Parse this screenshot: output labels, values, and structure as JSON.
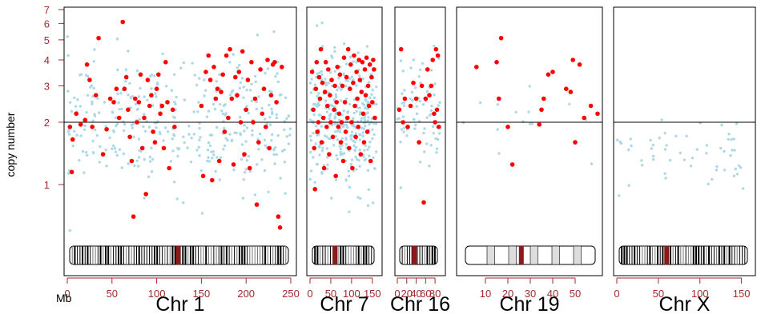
{
  "chart_data": {
    "type": "scatter",
    "ylabel": "copy number",
    "xunit": "Mb",
    "yscale": "log",
    "ylim": [
      0.5,
      7.4
    ],
    "yticks": [
      1,
      2,
      3,
      4,
      5,
      6,
      7
    ],
    "baseline": 2,
    "colors": {
      "tick": "#a52a2a",
      "light_points": "#add8e6",
      "highlight_points": "#ff0000",
      "frame": "#000000",
      "centromere": "#8b1a1a"
    },
    "panels": [
      {
        "name": "Chr 1",
        "xlim": [
          0,
          250
        ],
        "xticks": [
          0,
          50,
          100,
          150,
          200,
          250
        ],
        "centromere": 124,
        "highlight": [
          [
            3,
            1.9
          ],
          [
            5,
            1.15
          ],
          [
            6,
            1.65
          ],
          [
            10,
            2.2
          ],
          [
            15,
            1.95
          ],
          [
            20,
            2.05
          ],
          [
            22,
            3.8
          ],
          [
            25,
            3.2
          ],
          [
            28,
            1.9
          ],
          [
            32,
            2.7
          ],
          [
            35,
            5.1
          ],
          [
            40,
            1.4
          ],
          [
            44,
            1.85
          ],
          [
            48,
            2.6
          ],
          [
            52,
            2.5
          ],
          [
            55,
            2.9
          ],
          [
            58,
            2.1
          ],
          [
            62,
            6.1
          ],
          [
            64,
            2.9
          ],
          [
            66,
            3.3
          ],
          [
            68,
            2.3
          ],
          [
            70,
            1.7
          ],
          [
            72,
            1.3
          ],
          [
            74,
            0.7
          ],
          [
            76,
            2.6
          ],
          [
            78,
            2.0
          ],
          [
            80,
            2.5
          ],
          [
            82,
            3.4
          ],
          [
            84,
            1.5
          ],
          [
            86,
            2.1
          ],
          [
            88,
            0.9
          ],
          [
            90,
            3.2
          ],
          [
            92,
            2.4
          ],
          [
            94,
            2.7
          ],
          [
            96,
            1.8
          ],
          [
            98,
            1.6
          ],
          [
            100,
            2.9
          ],
          [
            102,
            3.4
          ],
          [
            104,
            2.2
          ],
          [
            106,
            2.4
          ],
          [
            108,
            1.5
          ],
          [
            110,
            3.9
          ],
          [
            112,
            2.5
          ],
          [
            114,
            1.2
          ],
          [
            118,
            2.3
          ],
          [
            120,
            1.9
          ],
          [
            150,
            2.4
          ],
          [
            152,
            1.1
          ],
          [
            155,
            3.5
          ],
          [
            158,
            4.2
          ],
          [
            160,
            3.2
          ],
          [
            162,
            1.05
          ],
          [
            164,
            3.7
          ],
          [
            166,
            2.6
          ],
          [
            168,
            2.9
          ],
          [
            170,
            1.3
          ],
          [
            172,
            2.8
          ],
          [
            174,
            3.4
          ],
          [
            176,
            1.8
          ],
          [
            178,
            4.2
          ],
          [
            180,
            2.1
          ],
          [
            182,
            4.5
          ],
          [
            184,
            2.6
          ],
          [
            186,
            1.25
          ],
          [
            188,
            3.3
          ],
          [
            190,
            2.7
          ],
          [
            192,
            3.5
          ],
          [
            194,
            2.0
          ],
          [
            196,
            4.4
          ],
          [
            198,
            1.4
          ],
          [
            200,
            2.3
          ],
          [
            202,
            3.2
          ],
          [
            204,
            1.2
          ],
          [
            206,
            3.9
          ],
          [
            208,
            2.0
          ],
          [
            210,
            2.6
          ],
          [
            212,
            0.8
          ],
          [
            214,
            1.6
          ],
          [
            216,
            3.6
          ],
          [
            218,
            2.2
          ],
          [
            220,
            2.9
          ],
          [
            222,
            1.9
          ],
          [
            224,
            4.0
          ],
          [
            226,
            1.5
          ],
          [
            228,
            2.7
          ],
          [
            230,
            3.8
          ],
          [
            232,
            3.9
          ],
          [
            234,
            2.5
          ],
          [
            236,
            0.7
          ],
          [
            238,
            0.62
          ],
          [
            240,
            3.7
          ]
        ],
        "n_light": 360
      },
      {
        "name": "Chr 7",
        "xlim": [
          0,
          160
        ],
        "xticks": [
          0,
          50,
          100,
          150
        ],
        "centromere": 60,
        "highlight": [
          [
            5,
            3.5
          ],
          [
            8,
            2.3
          ],
          [
            10,
            1.5
          ],
          [
            12,
            0.95
          ],
          [
            14,
            2.9
          ],
          [
            16,
            3.9
          ],
          [
            18,
            1.8
          ],
          [
            20,
            2.0
          ],
          [
            22,
            3.3
          ],
          [
            24,
            2.6
          ],
          [
            26,
            4.5
          ],
          [
            28,
            1.6
          ],
          [
            30,
            3.1
          ],
          [
            32,
            2.1
          ],
          [
            34,
            1.2
          ],
          [
            36,
            2.8
          ],
          [
            38,
            3.9
          ],
          [
            40,
            1.9
          ],
          [
            42,
            2.4
          ],
          [
            44,
            3.6
          ],
          [
            46,
            1.4
          ],
          [
            48,
            2.7
          ],
          [
            50,
            2.0
          ],
          [
            52,
            3.2
          ],
          [
            55,
            1.7
          ],
          [
            58,
            2.3
          ],
          [
            60,
            3.0
          ],
          [
            62,
            1.1
          ],
          [
            64,
            2.5
          ],
          [
            66,
            3.7
          ],
          [
            68,
            1.9
          ],
          [
            70,
            2.2
          ],
          [
            72,
            3.4
          ],
          [
            74,
            1.6
          ],
          [
            76,
            2.0
          ],
          [
            78,
            3.0
          ],
          [
            80,
            1.3
          ],
          [
            82,
            4.1
          ],
          [
            84,
            2.5
          ],
          [
            86,
            1.8
          ],
          [
            88,
            3.3
          ],
          [
            90,
            2.1
          ],
          [
            92,
            4.5
          ],
          [
            94,
            1.5
          ],
          [
            96,
            2.9
          ],
          [
            98,
            3.8
          ],
          [
            100,
            2.0
          ],
          [
            102,
            1.2
          ],
          [
            104,
            3.1
          ],
          [
            106,
            4.2
          ],
          [
            108,
            2.4
          ],
          [
            110,
            1.7
          ],
          [
            112,
            3.5
          ],
          [
            114,
            2.6
          ],
          [
            116,
            1.9
          ],
          [
            118,
            4.0
          ],
          [
            120,
            3.2
          ],
          [
            122,
            1.4
          ],
          [
            124,
            2.8
          ],
          [
            126,
            3.9
          ],
          [
            128,
            2.2
          ],
          [
            130,
            1.6
          ],
          [
            132,
            3.6
          ],
          [
            134,
            2.7
          ],
          [
            136,
            4.1
          ],
          [
            138,
            1.8
          ],
          [
            140,
            3.0
          ],
          [
            142,
            2.4
          ],
          [
            144,
            3.8
          ],
          [
            146,
            1.3
          ],
          [
            148,
            3.3
          ],
          [
            150,
            2.5
          ],
          [
            152,
            4.0
          ],
          [
            154,
            3.6
          ],
          [
            156,
            2.1
          ]
        ],
        "n_light": 330
      },
      {
        "name": "Chr 16",
        "xlim": [
          0,
          90
        ],
        "xticks": [
          0,
          20,
          40,
          60,
          80
        ],
        "centromere": 36,
        "highlight": [
          [
            4,
            2.3
          ],
          [
            8,
            4.5
          ],
          [
            12,
            2.0
          ],
          [
            16,
            2.6
          ],
          [
            22,
            1.9
          ],
          [
            28,
            2.4
          ],
          [
            34,
            3.1
          ],
          [
            40,
            2.6
          ],
          [
            46,
            1.6
          ],
          [
            52,
            3.0
          ],
          [
            56,
            0.82
          ],
          [
            60,
            2.6
          ],
          [
            64,
            3.6
          ],
          [
            68,
            2.7
          ],
          [
            72,
            3.0
          ],
          [
            75,
            4.0
          ],
          [
            78,
            2.2
          ],
          [
            80,
            2.0
          ],
          [
            82,
            4.5
          ],
          [
            84,
            2.3
          ],
          [
            86,
            4.2
          ],
          [
            88,
            1.9
          ]
        ],
        "n_light": 70
      },
      {
        "name": "Chr 19",
        "xlim": [
          0,
          60
        ],
        "xticks": [
          10,
          20,
          30,
          40,
          50
        ],
        "centromere": 26,
        "highlight": [
          [
            6,
            3.7
          ],
          [
            15,
            3.9
          ],
          [
            16,
            2.6
          ],
          [
            17,
            5.1
          ],
          [
            20,
            1.9
          ],
          [
            22,
            1.25
          ],
          [
            34,
            1.95
          ],
          [
            35,
            2.3
          ],
          [
            36,
            2.6
          ],
          [
            38,
            3.4
          ],
          [
            40,
            3.5
          ],
          [
            46,
            2.9
          ],
          [
            48,
            2.8
          ],
          [
            49,
            4.0
          ],
          [
            50,
            1.6
          ],
          [
            52,
            3.8
          ],
          [
            54,
            2.1
          ],
          [
            57,
            2.4
          ],
          [
            60,
            2.2
          ]
        ],
        "n_light": 14
      },
      {
        "name": "Chr X",
        "xlim": [
          0,
          160
        ],
        "xticks": [
          0,
          50,
          100,
          150
        ],
        "centromere": 60,
        "highlight": [],
        "n_light": 55
      }
    ]
  }
}
